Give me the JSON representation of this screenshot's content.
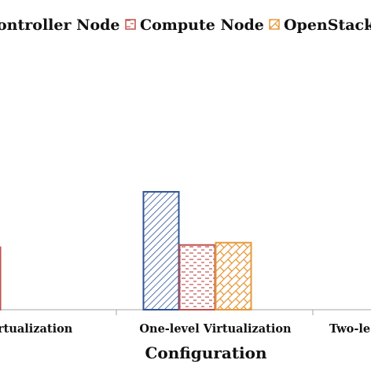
{
  "chart_data": {
    "type": "bar",
    "xlabel": "Configuration",
    "ylabel": "",
    "categories": [
      "No Virtualization",
      "One-level Virtualization",
      "Two-level Virtualization"
    ],
    "visible_category_labels": [
      "rtualization",
      "One-level Virtualization",
      "Two-le"
    ],
    "ylim": [
      0,
      1
    ],
    "legend_position": "top",
    "visible_legend_labels": [
      "ontroller Node",
      "Compute Node",
      "OpenStack V"
    ],
    "series": [
      {
        "name": "Controller Node",
        "color": "#2f5597",
        "pattern": "diagonal-lines",
        "values": [
          null,
          0.51,
          null
        ]
      },
      {
        "name": "Compute Node",
        "color": "#c0504d",
        "pattern": "dashes",
        "values": [
          0.27,
          0.28,
          null
        ]
      },
      {
        "name": "OpenStack V",
        "color": "#e69a3c",
        "pattern": "weave",
        "values": [
          null,
          0.29,
          null
        ]
      }
    ]
  }
}
